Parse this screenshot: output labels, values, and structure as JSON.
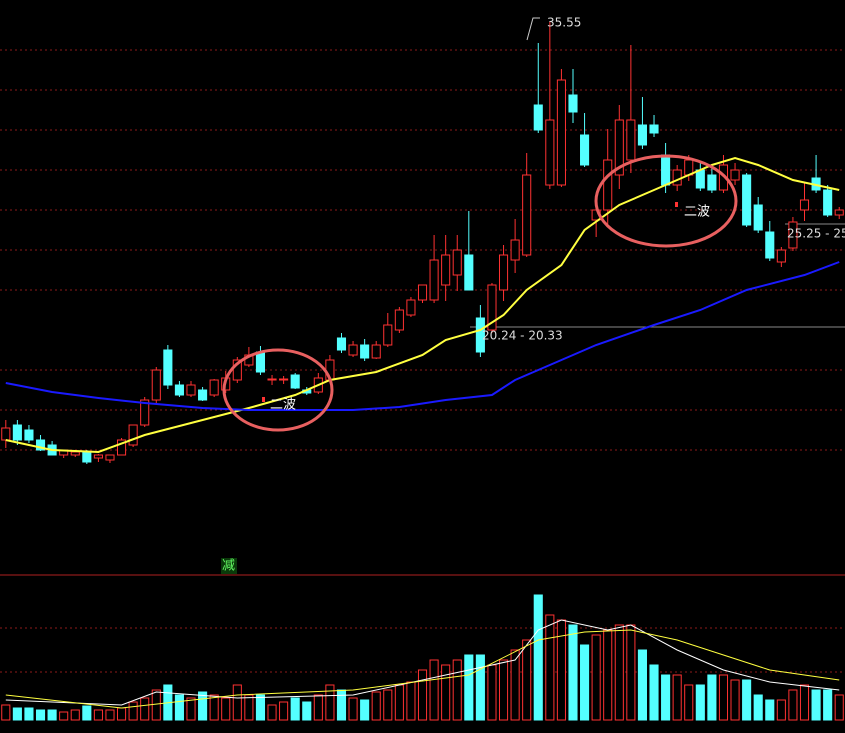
{
  "chart_data": {
    "type": "candlestick",
    "open": [
      14.65,
      15.4,
      15.15,
      14.65,
      14.4,
      13.9,
      13.9,
      14.05,
      13.75,
      13.65,
      13.9,
      14.4,
      15.4,
      16.65,
      19.15,
      17.4,
      16.9,
      17.15,
      16.9,
      17.15,
      17.65,
      18.4,
      19.05,
      17.65,
      17.65,
      17.9,
      17.15,
      17.05,
      17.65,
      19.75,
      18.9,
      19.4,
      18.75,
      19.4,
      20.15,
      20.9,
      21.65,
      21.65,
      22.4,
      22.9,
      23.9,
      20.75,
      20.15,
      22.15,
      23.65,
      23.9,
      31.4,
      27.4,
      27.4,
      31.9,
      29.9,
      25.65,
      26.15,
      27.9,
      28.65,
      30.4,
      30.4,
      28.9,
      27.4,
      27.9,
      28.15,
      27.9,
      27.15,
      27.65,
      27.9,
      26.4,
      25.05,
      23.55,
      24.25,
      26.15,
      27.75,
      27.15,
      25.9
    ],
    "high": [
      15.65,
      15.65,
      15.4,
      14.9,
      14.6,
      14.15,
      14.05,
      14.15,
      13.95,
      13.85,
      14.75,
      15.4,
      16.8,
      18.3,
      19.4,
      17.6,
      17.6,
      17.3,
      17.7,
      18.1,
      18.8,
      19.3,
      19.35,
      17.9,
      17.85,
      18.0,
      17.3,
      18.0,
      18.9,
      20.0,
      19.6,
      19.7,
      19.6,
      21.0,
      21.3,
      21.8,
      22.4,
      24.9,
      24.9,
      24.9,
      26.1,
      21.4,
      22.5,
      24.4,
      25.7,
      29.0,
      34.5,
      35.55,
      33.2,
      33.2,
      31.0,
      26.5,
      30.2,
      31.4,
      34.4,
      31.8,
      30.9,
      29.5,
      28.4,
      28.9,
      28.6,
      28.3,
      28.9,
      28.5,
      28.0,
      26.8,
      25.6,
      24.3,
      25.8,
      27.5,
      28.9,
      27.4,
      26.3
    ],
    "low": [
      14.25,
      14.4,
      14.5,
      14.1,
      13.9,
      13.75,
      13.8,
      13.45,
      13.55,
      13.5,
      13.9,
      14.3,
      15.3,
      16.5,
      17.2,
      16.8,
      16.8,
      16.6,
      16.8,
      17.0,
      17.5,
      18.3,
      17.9,
      17.4,
      17.45,
      17.2,
      16.9,
      16.95,
      17.6,
      19.0,
      18.8,
      18.6,
      18.7,
      19.3,
      20.0,
      20.8,
      21.5,
      21.5,
      21.6,
      22.1,
      22.15,
      18.8,
      20.0,
      21.6,
      23.0,
      23.8,
      30.0,
      27.2,
      27.3,
      30.5,
      28.3,
      24.8,
      25.3,
      27.2,
      28.0,
      29.2,
      29.8,
      27.0,
      27.1,
      27.6,
      27.1,
      27.0,
      27.0,
      27.4,
      25.3,
      25.0,
      23.6,
      23.3,
      24.1,
      25.6,
      27.0,
      25.8,
      25.7
    ],
    "close": [
      15.25,
      14.65,
      14.65,
      14.15,
      13.9,
      14.15,
      14.05,
      13.55,
      13.9,
      13.9,
      14.65,
      15.4,
      16.65,
      18.15,
      17.4,
      16.9,
      17.4,
      16.65,
      17.65,
      17.75,
      18.65,
      18.9,
      18.05,
      17.7,
      17.7,
      17.25,
      17.0,
      17.75,
      18.65,
      19.15,
      19.4,
      18.75,
      19.4,
      20.4,
      21.15,
      21.65,
      22.4,
      23.65,
      23.9,
      24.15,
      22.15,
      19.05,
      22.4,
      23.9,
      24.65,
      27.9,
      30.15,
      30.65,
      32.65,
      31.05,
      28.4,
      26.15,
      28.65,
      30.65,
      30.65,
      29.4,
      30.0,
      27.4,
      28.15,
      28.65,
      27.25,
      27.15,
      28.4,
      28.15,
      25.4,
      25.15,
      23.75,
      24.15,
      25.55,
      26.65,
      27.15,
      25.9,
      26.15
    ],
    "up_color": "#ff3232",
    "down_color": "#54ffff",
    "ylim": [
      11.65,
      36.65
    ],
    "ma_lines": [
      {
        "color": "#ffff40",
        "x": [
          0,
          4,
          8,
          12,
          17,
          21,
          25,
          28,
          32,
          36,
          38,
          41,
          43,
          45,
          48,
          50,
          53,
          56,
          58,
          61,
          63,
          65,
          68,
          70,
          72
        ],
        "values": [
          14.65,
          14.15,
          14.05,
          14.9,
          15.65,
          16.25,
          16.9,
          17.65,
          18.05,
          18.9,
          19.65,
          20.15,
          20.9,
          22.15,
          23.4,
          25.15,
          26.4,
          27.15,
          27.65,
          28.4,
          28.75,
          28.4,
          27.65,
          27.4,
          27.15
        ]
      },
      {
        "color": "#1a1aff",
        "x": [
          0,
          4,
          8,
          12,
          17,
          21,
          25,
          30,
          34,
          38,
          42,
          44,
          48,
          51,
          56,
          60,
          64,
          69,
          72
        ],
        "values": [
          17.5,
          17.05,
          16.75,
          16.5,
          16.25,
          16.15,
          16.15,
          16.15,
          16.3,
          16.65,
          16.9,
          17.65,
          18.65,
          19.4,
          20.4,
          21.15,
          22.15,
          22.9,
          23.55
        ]
      }
    ],
    "volume": [
      15,
      12,
      12,
      10,
      10,
      8,
      10,
      14,
      10,
      10,
      12,
      18,
      22,
      30,
      35,
      25,
      22,
      28,
      25,
      22,
      35,
      25,
      25,
      15,
      18,
      22,
      18,
      25,
      35,
      30,
      22,
      20,
      28,
      30,
      35,
      38,
      50,
      60,
      55,
      60,
      65,
      65,
      55,
      60,
      70,
      80,
      125,
      105,
      100,
      95,
      75,
      85,
      90,
      95,
      95,
      70,
      55,
      45,
      45,
      35,
      35,
      45,
      45,
      40,
      40,
      25,
      20,
      20,
      30,
      35,
      30,
      30,
      25
    ],
    "vol_ylim": [
      0,
      145
    ],
    "vol_ma_lines": [
      {
        "color": "#ffffff",
        "x": [
          0,
          10,
          13,
          20,
          30,
          38,
          44,
          46,
          48,
          52,
          54,
          58,
          62,
          66,
          72
        ],
        "values": [
          20,
          15,
          28,
          22,
          25,
          45,
          60,
          90,
          100,
          90,
          95,
          70,
          50,
          38,
          30
        ]
      },
      {
        "color": "#ffff40",
        "x": [
          0,
          10,
          20,
          30,
          40,
          46,
          50,
          54,
          58,
          62,
          66,
          72
        ],
        "values": [
          25,
          12,
          25,
          30,
          45,
          80,
          88,
          90,
          80,
          65,
          50,
          40
        ]
      }
    ],
    "annotations": {
      "high_label": "35.55",
      "wave1": "二波",
      "wave2": "二波",
      "range1": "20.24 - 20.33",
      "range2": "25.25 - 25.",
      "indicator": "减"
    }
  }
}
